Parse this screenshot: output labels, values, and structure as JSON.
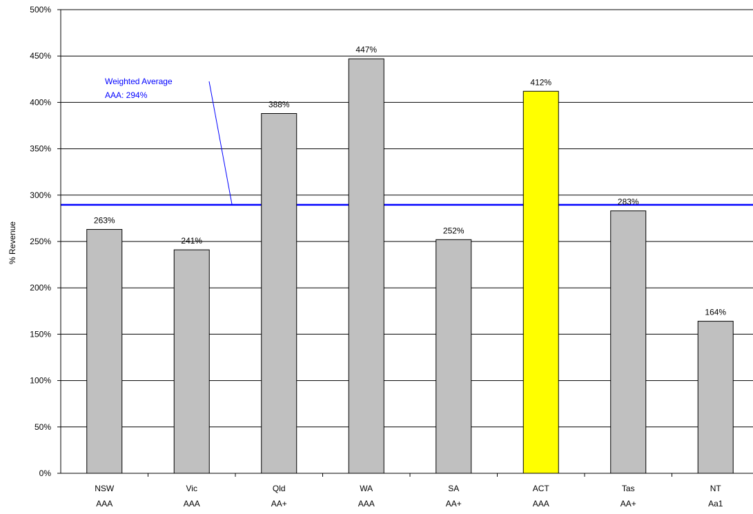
{
  "chart_data": {
    "type": "bar",
    "title": "",
    "xlabel": "",
    "ylabel": "% Revenue",
    "ylim": [
      0,
      500
    ],
    "y_ticks": [
      0,
      50,
      100,
      150,
      200,
      250,
      300,
      350,
      400,
      450,
      500
    ],
    "y_tick_suffix": "%",
    "grid": true,
    "categories": [
      {
        "name": "NSW",
        "rating": "AAA"
      },
      {
        "name": "Vic",
        "rating": "AAA"
      },
      {
        "name": "Qld",
        "rating": "AA+"
      },
      {
        "name": "WA",
        "rating": "AAA"
      },
      {
        "name": "SA",
        "rating": "AA+"
      },
      {
        "name": "ACT",
        "rating": "AAA"
      },
      {
        "name": "Tas",
        "rating": "AA+"
      },
      {
        "name": "NT",
        "rating": "Aa1"
      }
    ],
    "values": [
      263,
      241,
      388,
      447,
      252,
      412,
      283,
      164
    ],
    "value_labels": [
      "263%",
      "241%",
      "388%",
      "447%",
      "252%",
      "412%",
      "283%",
      "164%"
    ],
    "highlight_category": "ACT",
    "colors": {
      "bar": "#c0c0c0",
      "highlight": "#ffff00",
      "average_line": "#0000ff",
      "grid": "#000000"
    },
    "reference_line": {
      "value": 294,
      "label_line1": "Weighted Average",
      "label_line2": "AAA: 294%"
    }
  }
}
